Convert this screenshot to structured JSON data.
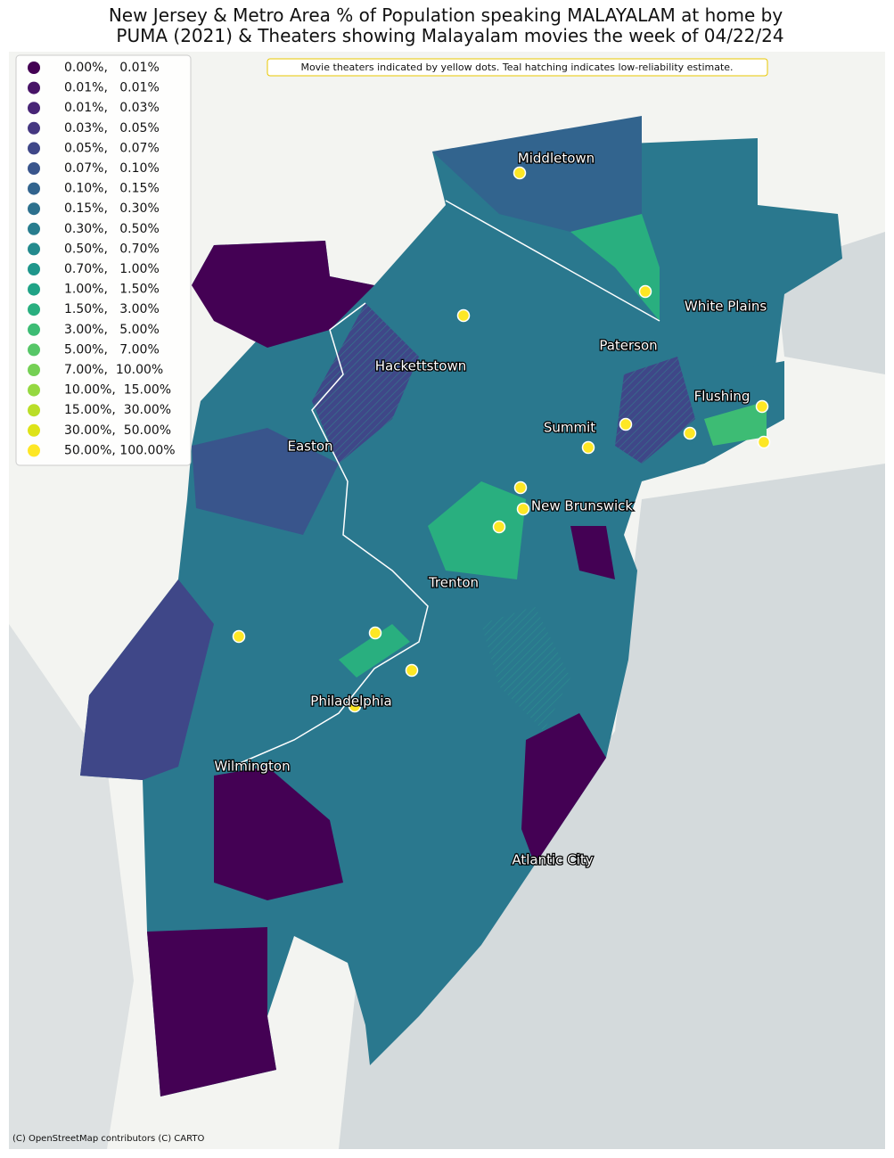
{
  "title_lines": [
    "New Jersey & Metro Area % of Population speaking MALAYALAM at home by",
    "PUMA (2021) & Theaters showing Malayalam movies the week of 04/22/24"
  ],
  "note": "Movie theaters indicated by yellow dots. Teal hatching indicates low-reliability estimate.",
  "legend": [
    {
      "label": "0.00%,   0.01%",
      "color": "#440154"
    },
    {
      "label": "0.01%,   0.01%",
      "color": "#481467"
    },
    {
      "label": "0.01%,   0.03%",
      "color": "#482576"
    },
    {
      "label": "0.03%,   0.05%",
      "color": "#453781"
    },
    {
      "label": "0.05%,   0.07%",
      "color": "#3f4788"
    },
    {
      "label": "0.07%,   0.10%",
      "color": "#39558c"
    },
    {
      "label": "0.10%,   0.15%",
      "color": "#32648e"
    },
    {
      "label": "0.15%,   0.30%",
      "color": "#2d718e"
    },
    {
      "label": "0.30%,   0.50%",
      "color": "#287d8e"
    },
    {
      "label": "0.50%,   0.70%",
      "color": "#238a8d"
    },
    {
      "label": "0.70%,   1.00%",
      "color": "#1f968b"
    },
    {
      "label": "1.00%,   1.50%",
      "color": "#20a386"
    },
    {
      "label": "1.50%,   3.00%",
      "color": "#29af7f"
    },
    {
      "label": "3.00%,   5.00%",
      "color": "#3dbc74"
    },
    {
      "label": "5.00%,   7.00%",
      "color": "#56c667"
    },
    {
      "label": "7.00%,  10.00%",
      "color": "#75d054"
    },
    {
      "label": "10.00%,  15.00%",
      "color": "#95d840"
    },
    {
      "label": "15.00%,  30.00%",
      "color": "#bade28"
    },
    {
      "label": "30.00%,  50.00%",
      "color": "#dde318"
    },
    {
      "label": "50.00%, 100.00%",
      "color": "#fde725"
    }
  ],
  "cities": [
    "Middletown",
    "White Plains",
    "Paterson",
    "Hackettstown",
    "Flushing",
    "Summit",
    "Easton",
    "New Brunswick",
    "Trenton",
    "Philadelphia",
    "Wilmington",
    "Atlantic City"
  ],
  "attribution": "(C) OpenStreetMap contributors (C) CARTO"
}
